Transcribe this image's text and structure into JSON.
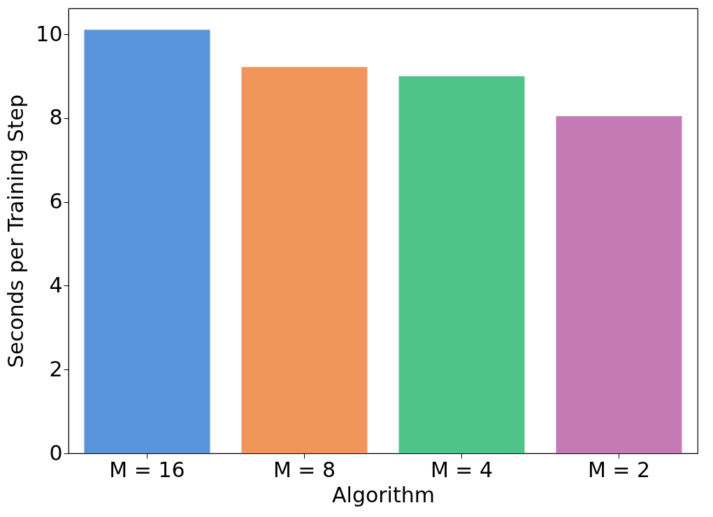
{
  "chart_data": {
    "type": "bar",
    "xlabel": "Algorithm",
    "ylabel": "Seconds per Training Step",
    "categories": [
      "M = 16",
      "M = 8",
      "M = 4",
      "M = 2"
    ],
    "values": [
      10.11,
      9.22,
      9.0,
      8.05
    ],
    "colors": [
      "#5a94db",
      "#f2955a",
      "#4fc48a",
      "#c47bb5"
    ],
    "ylim": [
      0,
      10.62
    ],
    "yticks": [
      0,
      2,
      4,
      6,
      8,
      10
    ],
    "grid": false
  }
}
